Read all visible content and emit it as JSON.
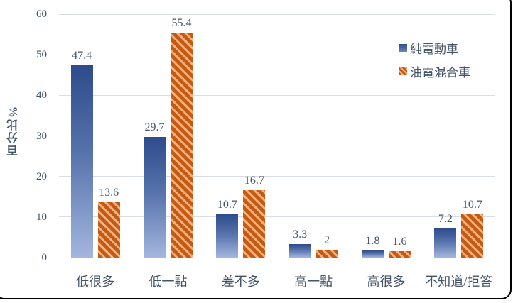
{
  "figure": {
    "background": "#ffffff"
  },
  "chart_data": {
    "type": "bar",
    "title": "",
    "xlabel": "",
    "ylabel": "百分比%",
    "ylim": [
      0,
      60
    ],
    "ytick_step": 10,
    "grid": true,
    "legend_position": "top-right",
    "value_labels": true,
    "categories": [
      "低很多",
      "低一點",
      "差不多",
      "高一點",
      "高很多",
      "不知道/拒答"
    ],
    "series": [
      {
        "name": "純電動車",
        "style": "solid-gradient",
        "color_top": "#2e4b8c",
        "color_bottom": "#a3b6de",
        "values": [
          47.4,
          29.7,
          10.7,
          3.3,
          1.8,
          7.2
        ]
      },
      {
        "name": "油電混合車",
        "style": "diagonal-hatch",
        "color": "#c55a11",
        "stripe_color": "#f4b183",
        "values": [
          13.6,
          55.4,
          16.7,
          2,
          1.6,
          10.7
        ]
      }
    ]
  },
  "colors": {
    "text": "#44546a",
    "gridline": "#d9dde6",
    "frame_border": "#000000"
  }
}
